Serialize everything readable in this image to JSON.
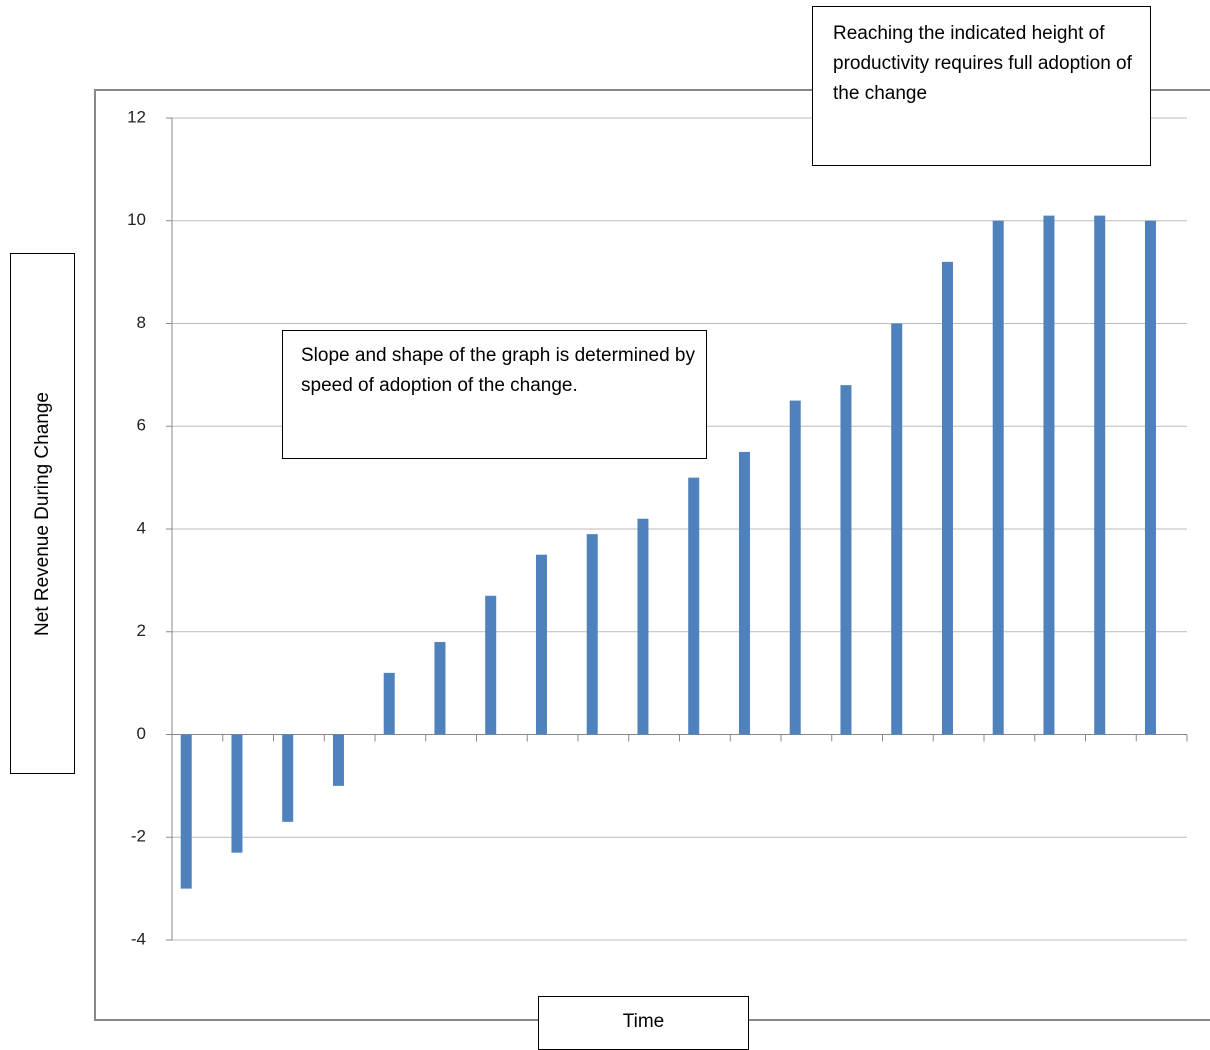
{
  "chart_data": {
    "type": "bar",
    "y_label": "Net Revenue During Change",
    "x_label": "Time",
    "annotations": [
      "Slope and shape of the graph is determined by speed of adoption of the change.",
      "Reaching the indicated height of productivity requires full adoption of the change"
    ],
    "categories": [
      null,
      null,
      null,
      null,
      null,
      null,
      null,
      null,
      null,
      null,
      null,
      null,
      null,
      null,
      null,
      null,
      null,
      null,
      null,
      null
    ],
    "values": [
      -3,
      -2.3,
      -1.7,
      -1,
      1.2,
      1.8,
      2.7,
      3.5,
      3.9,
      4.2,
      5,
      5.5,
      6.5,
      6.8,
      8,
      9.2,
      10,
      10.1,
      10.1,
      10
    ],
    "color": "#4f81bd",
    "ylim": [
      -4,
      12
    ],
    "yticks": [
      -4,
      -2,
      0,
      2,
      4,
      6,
      8,
      10,
      12
    ],
    "grid": true
  }
}
